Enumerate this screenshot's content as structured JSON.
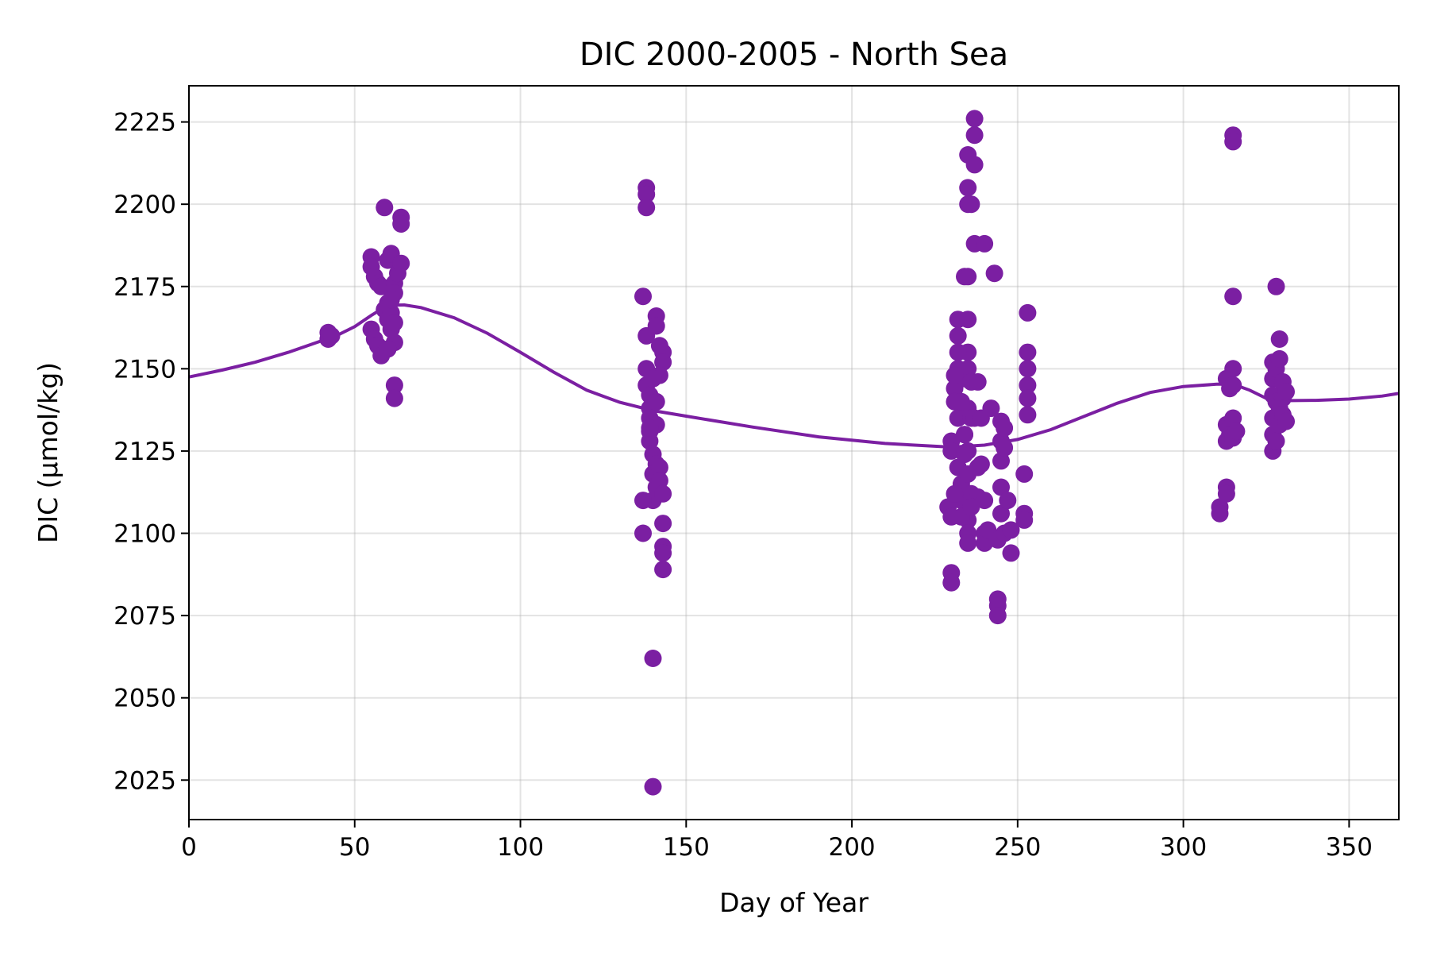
{
  "chart_data": {
    "type": "scatter",
    "title": "DIC 2000-2005 - North Sea",
    "xlabel": "Day of Year",
    "ylabel": "DIC (µmol/kg)",
    "xlim": [
      0,
      365
    ],
    "ylim": [
      2013,
      2236
    ],
    "xticks": [
      0,
      50,
      100,
      150,
      200,
      250,
      300,
      350
    ],
    "yticks": [
      2025,
      2050,
      2075,
      2100,
      2125,
      2150,
      2175,
      2200,
      2225
    ],
    "grid": true,
    "legend": "none",
    "colors": {
      "series": "#7b1fa2"
    },
    "series": [
      {
        "kind": "scatter",
        "points": [
          [
            42,
            2161
          ],
          [
            42,
            2159
          ],
          [
            43,
            2160
          ],
          [
            55,
            2184
          ],
          [
            55,
            2181
          ],
          [
            56,
            2178
          ],
          [
            57,
            2176
          ],
          [
            58,
            2175
          ],
          [
            59,
            2199
          ],
          [
            60,
            2183
          ],
          [
            61,
            2185
          ],
          [
            62,
            2176
          ],
          [
            63,
            2179
          ],
          [
            64,
            2196
          ],
          [
            64,
            2194
          ],
          [
            64,
            2182
          ],
          [
            62,
            2173
          ],
          [
            55,
            2162
          ],
          [
            56,
            2159
          ],
          [
            57,
            2157
          ],
          [
            58,
            2154
          ],
          [
            59,
            2168
          ],
          [
            60,
            2165
          ],
          [
            61,
            2162
          ],
          [
            62,
            2158
          ],
          [
            60,
            2170
          ],
          [
            61,
            2167
          ],
          [
            62,
            2164
          ],
          [
            62,
            2145
          ],
          [
            62,
            2141
          ],
          [
            61,
            2171
          ],
          [
            60,
            2156
          ],
          [
            138,
            2205
          ],
          [
            138,
            2203
          ],
          [
            138,
            2199
          ],
          [
            137,
            2172
          ],
          [
            138,
            2160
          ],
          [
            138,
            2150
          ],
          [
            138,
            2145
          ],
          [
            139,
            2142
          ],
          [
            139,
            2138
          ],
          [
            139,
            2135
          ],
          [
            139,
            2131
          ],
          [
            139,
            2128
          ],
          [
            140,
            2124
          ],
          [
            141,
            2121
          ],
          [
            140,
            2118
          ],
          [
            141,
            2114
          ],
          [
            140,
            2110
          ],
          [
            137,
            2110
          ],
          [
            137,
            2100
          ],
          [
            141,
            2166
          ],
          [
            141,
            2163
          ],
          [
            142,
            2157
          ],
          [
            143,
            2155
          ],
          [
            143,
            2152
          ],
          [
            142,
            2148
          ],
          [
            140,
            2147
          ],
          [
            141,
            2140
          ],
          [
            141,
            2133
          ],
          [
            142,
            2120
          ],
          [
            142,
            2116
          ],
          [
            143,
            2112
          ],
          [
            143,
            2103
          ],
          [
            143,
            2096
          ],
          [
            143,
            2094
          ],
          [
            143,
            2089
          ],
          [
            140,
            2062
          ],
          [
            140,
            2023
          ],
          [
            139,
            2132
          ],
          [
            229,
            2108
          ],
          [
            230,
            2105
          ],
          [
            230,
            2088
          ],
          [
            230,
            2085
          ],
          [
            230,
            2128
          ],
          [
            230,
            2125
          ],
          [
            231,
            2144
          ],
          [
            231,
            2140
          ],
          [
            232,
            2165
          ],
          [
            232,
            2160
          ],
          [
            232,
            2150
          ],
          [
            232,
            2135
          ],
          [
            232,
            2120
          ],
          [
            233,
            2115
          ],
          [
            233,
            2110
          ],
          [
            234,
            2178
          ],
          [
            234,
            2147
          ],
          [
            234,
            2130
          ],
          [
            235,
            2215
          ],
          [
            235,
            2205
          ],
          [
            235,
            2200
          ],
          [
            235,
            2178
          ],
          [
            235,
            2165
          ],
          [
            235,
            2155
          ],
          [
            235,
            2150
          ],
          [
            235,
            2138
          ],
          [
            235,
            2125
          ],
          [
            235,
            2118
          ],
          [
            235,
            2104
          ],
          [
            235,
            2100
          ],
          [
            235,
            2097
          ],
          [
            236,
            2200
          ],
          [
            236,
            2146
          ],
          [
            236,
            2135
          ],
          [
            236,
            2112
          ],
          [
            237,
            2226
          ],
          [
            237,
            2221
          ],
          [
            237,
            2212
          ],
          [
            237,
            2188
          ],
          [
            237,
            2135
          ],
          [
            238,
            2146
          ],
          [
            238,
            2120
          ],
          [
            238,
            2111
          ],
          [
            239,
            2135
          ],
          [
            239,
            2121
          ],
          [
            240,
            2188
          ],
          [
            240,
            2110
          ],
          [
            240,
            2100
          ],
          [
            240,
            2097
          ],
          [
            241,
            2101
          ],
          [
            242,
            2138
          ],
          [
            243,
            2179
          ],
          [
            244,
            2098
          ],
          [
            244,
            2080
          ],
          [
            244,
            2078
          ],
          [
            244,
            2075
          ],
          [
            245,
            2134
          ],
          [
            245,
            2128
          ],
          [
            245,
            2122
          ],
          [
            245,
            2114
          ],
          [
            245,
            2106
          ],
          [
            246,
            2132
          ],
          [
            246,
            2126
          ],
          [
            246,
            2100
          ],
          [
            247,
            2110
          ],
          [
            248,
            2094
          ],
          [
            248,
            2101
          ],
          [
            252,
            2118
          ],
          [
            252,
            2106
          ],
          [
            252,
            2104
          ],
          [
            253,
            2167
          ],
          [
            253,
            2155
          ],
          [
            253,
            2150
          ],
          [
            253,
            2145
          ],
          [
            253,
            2141
          ],
          [
            253,
            2136
          ],
          [
            231,
            2148
          ],
          [
            233,
            2140
          ],
          [
            234,
            2130
          ],
          [
            231,
            2112
          ],
          [
            233,
            2105
          ],
          [
            234,
            2124
          ],
          [
            232,
            2155
          ],
          [
            236,
            2108
          ],
          [
            311,
            2108
          ],
          [
            311,
            2106
          ],
          [
            313,
            2147
          ],
          [
            313,
            2133
          ],
          [
            313,
            2128
          ],
          [
            313,
            2114
          ],
          [
            313,
            2112
          ],
          [
            314,
            2144
          ],
          [
            314,
            2130
          ],
          [
            315,
            2221
          ],
          [
            315,
            2219
          ],
          [
            315,
            2172
          ],
          [
            315,
            2150
          ],
          [
            315,
            2145
          ],
          [
            315,
            2135
          ],
          [
            315,
            2129
          ],
          [
            316,
            2131
          ],
          [
            327,
            2152
          ],
          [
            327,
            2147
          ],
          [
            327,
            2142
          ],
          [
            327,
            2135
          ],
          [
            327,
            2130
          ],
          [
            327,
            2125
          ],
          [
            328,
            2175
          ],
          [
            328,
            2150
          ],
          [
            328,
            2140
          ],
          [
            328,
            2128
          ],
          [
            329,
            2159
          ],
          [
            329,
            2153
          ],
          [
            329,
            2138
          ],
          [
            329,
            2133
          ],
          [
            330,
            2146
          ],
          [
            330,
            2141
          ],
          [
            330,
            2136
          ],
          [
            331,
            2143
          ],
          [
            331,
            2134
          ]
        ]
      },
      {
        "kind": "line",
        "points": [
          [
            0,
            2147.5
          ],
          [
            10,
            2149.6
          ],
          [
            20,
            2152
          ],
          [
            30,
            2155
          ],
          [
            40,
            2158.5
          ],
          [
            45,
            2160.3
          ],
          [
            50,
            2162.8
          ],
          [
            55,
            2166.2
          ],
          [
            60,
            2169.3
          ],
          [
            65,
            2169.4
          ],
          [
            70,
            2168.6
          ],
          [
            80,
            2165.5
          ],
          [
            90,
            2160.8
          ],
          [
            100,
            2155
          ],
          [
            110,
            2149
          ],
          [
            120,
            2143.5
          ],
          [
            130,
            2139.8
          ],
          [
            140,
            2137.3
          ],
          [
            150,
            2135.6
          ],
          [
            170,
            2132.3
          ],
          [
            190,
            2129.3
          ],
          [
            210,
            2127.3
          ],
          [
            230,
            2126.2
          ],
          [
            240,
            2126.8
          ],
          [
            250,
            2128.5
          ],
          [
            260,
            2131.5
          ],
          [
            270,
            2135.5
          ],
          [
            280,
            2139.5
          ],
          [
            290,
            2142.8
          ],
          [
            300,
            2144.6
          ],
          [
            310,
            2145.3
          ],
          [
            315,
            2145.3
          ],
          [
            320,
            2143.5
          ],
          [
            325,
            2141
          ],
          [
            330,
            2140.3
          ],
          [
            340,
            2140.4
          ],
          [
            350,
            2140.8
          ],
          [
            360,
            2141.7
          ],
          [
            365,
            2142.5
          ]
        ]
      }
    ]
  }
}
